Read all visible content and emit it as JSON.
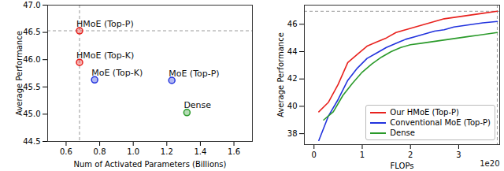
{
  "chart_data": [
    {
      "type": "scatter",
      "x_label": "Num of Activated Parameters (Billions)",
      "y_label": "Average Performance",
      "labels": [
        "HMoE (Top-P)",
        "HMoE (Top-K)",
        "MoE (Top-K)",
        "MoE (Top-P)",
        "Dense"
      ],
      "x": [
        0.68,
        0.68,
        0.77,
        1.23,
        1.32
      ],
      "values": [
        46.53,
        45.95,
        45.63,
        45.62,
        45.03
      ],
      "colors": [
        "#e8221e",
        "#e8221e",
        "#2233dd",
        "#2233dd",
        "#2a9a2a"
      ],
      "marker": "circle",
      "xlim": [
        0.49,
        1.71
      ],
      "xticks": [
        0.6,
        0.8,
        {
          "value": 1,
          "label": "1.0"
        },
        1.2,
        1.4,
        1.6
      ],
      "ylim": [
        44.5,
        47.0
      ],
      "yticks": [
        44.5,
        {
          "value": 45,
          "label": "45.0"
        },
        45.5,
        {
          "value": 46,
          "label": "46.0"
        },
        46.5,
        {
          "value": 47,
          "label": "47.0"
        }
      ],
      "guide_lines": {
        "x": [
          0.68
        ],
        "y": [
          46.53
        ]
      }
    },
    {
      "type": "line",
      "x_label": "FLOPs",
      "x_exponent_label": "1e20",
      "y_label": "Average Performance",
      "series": [
        {
          "name": "Our HMoE (Top-P)",
          "color": "#e8221e",
          "x": [
            0.1,
            0.3,
            0.5,
            0.7,
            0.9,
            1.1,
            1.3,
            1.5,
            1.7,
            1.9,
            2.1,
            2.3,
            2.5,
            2.7,
            2.9,
            3.1,
            3.3,
            3.5,
            3.8
          ],
          "values": [
            39.6,
            40.3,
            41.6,
            43.2,
            43.8,
            44.4,
            44.7,
            45.0,
            45.4,
            45.6,
            45.8,
            46.0,
            46.2,
            46.4,
            46.5,
            46.6,
            46.7,
            46.8,
            46.95
          ]
        },
        {
          "name": "Conventional MoE (Top-P)",
          "color": "#2233dd",
          "x": [
            0.1,
            0.3,
            0.5,
            0.7,
            0.9,
            1.1,
            1.3,
            1.5,
            1.7,
            1.9,
            2.1,
            2.3,
            2.5,
            2.7,
            2.9,
            3.1,
            3.3,
            3.5,
            3.8
          ],
          "values": [
            37.5,
            39.3,
            40.5,
            41.9,
            42.8,
            43.5,
            43.9,
            44.3,
            44.6,
            44.9,
            45.1,
            45.3,
            45.5,
            45.6,
            45.8,
            45.9,
            46.0,
            46.1,
            46.2
          ]
        },
        {
          "name": "Dense",
          "color": "#2a9a2a",
          "x": [
            0.2,
            0.4,
            0.6,
            0.8,
            1.0,
            1.2,
            1.4,
            1.6,
            1.8,
            2.0,
            2.2,
            2.4,
            2.6,
            2.8,
            3.0,
            3.2,
            3.4,
            3.6,
            3.8
          ],
          "values": [
            39.0,
            39.6,
            40.8,
            41.7,
            42.5,
            43.1,
            43.6,
            44.0,
            44.3,
            44.5,
            44.6,
            44.7,
            44.8,
            44.9,
            45.0,
            45.1,
            45.2,
            45.3,
            45.4
          ]
        }
      ],
      "xlim": [
        -0.2,
        3.85
      ],
      "xticks": [
        0,
        1,
        2,
        3
      ],
      "ylim": [
        37.2,
        47.4
      ],
      "yticks": [
        38,
        40,
        42,
        44,
        46
      ],
      "legend": "lower right",
      "guide_lines": {
        "x": [
          3.8
        ],
        "y": [
          46.95
        ]
      }
    }
  ]
}
